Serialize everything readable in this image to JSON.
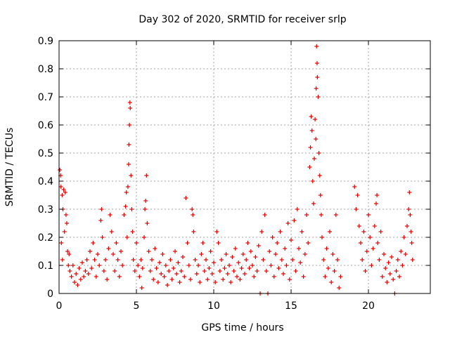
{
  "chart_data": {
    "type": "scatter",
    "title": "Day 302 of 2020, SRMTID for receiver srlp",
    "xlabel": "GPS time / hours",
    "ylabel": "SRMTID / TECUs",
    "xlim": [
      0,
      24
    ],
    "ylim": [
      0,
      0.9
    ],
    "xticks": [
      0,
      5,
      10,
      15,
      20
    ],
    "xtick_labels": [
      "0",
      "5",
      "10",
      "15",
      "20"
    ],
    "yticks": [
      0,
      0.1,
      0.2,
      0.3,
      0.4,
      0.5,
      0.6,
      0.7,
      0.8,
      0.9
    ],
    "ytick_labels": [
      "0",
      "0.1",
      "0.2",
      "0.3",
      "0.4",
      "0.5",
      "0.6",
      "0.7",
      "0.8",
      "0.9"
    ],
    "grid": true,
    "marker": "plus",
    "series": [
      {
        "name": "SRMTID",
        "color": "#e00000",
        "points": [
          [
            0.05,
            0.44
          ],
          [
            0.1,
            0.42
          ],
          [
            0.12,
            0.38
          ],
          [
            0.2,
            0.35
          ],
          [
            0.25,
            0.3
          ],
          [
            0.3,
            0.37
          ],
          [
            0.35,
            0.22
          ],
          [
            0.4,
            0.36
          ],
          [
            0.45,
            0.28
          ],
          [
            0.5,
            0.25
          ],
          [
            0.15,
            0.18
          ],
          [
            0.22,
            0.12
          ],
          [
            0.55,
            0.15
          ],
          [
            0.6,
            0.1
          ],
          [
            0.65,
            0.14
          ],
          [
            0.7,
            0.08
          ],
          [
            0.8,
            0.06
          ],
          [
            0.9,
            0.1
          ],
          [
            1.0,
            0.04
          ],
          [
            1.1,
            0.07
          ],
          [
            1.2,
            0.03
          ],
          [
            1.3,
            0.09
          ],
          [
            1.4,
            0.05
          ],
          [
            1.5,
            0.11
          ],
          [
            1.6,
            0.06
          ],
          [
            1.7,
            0.08
          ],
          [
            1.8,
            0.12
          ],
          [
            1.9,
            0.07
          ],
          [
            2.0,
            0.15
          ],
          [
            2.1,
            0.09
          ],
          [
            2.2,
            0.18
          ],
          [
            2.3,
            0.12
          ],
          [
            2.4,
            0.06
          ],
          [
            2.5,
            0.14
          ],
          [
            2.6,
            0.1
          ],
          [
            2.7,
            0.26
          ],
          [
            2.75,
            0.3
          ],
          [
            2.8,
            0.2
          ],
          [
            2.9,
            0.08
          ],
          [
            3.0,
            0.12
          ],
          [
            3.1,
            0.05
          ],
          [
            3.2,
            0.16
          ],
          [
            3.3,
            0.28
          ],
          [
            3.4,
            0.22
          ],
          [
            3.5,
            0.14
          ],
          [
            3.6,
            0.08
          ],
          [
            3.7,
            0.18
          ],
          [
            3.8,
            0.12
          ],
          [
            3.9,
            0.06
          ],
          [
            4.0,
            0.15
          ],
          [
            4.1,
            0.1
          ],
          [
            4.2,
            0.28
          ],
          [
            4.3,
            0.31
          ],
          [
            4.35,
            0.36
          ],
          [
            4.4,
            0.2
          ],
          [
            4.45,
            0.38
          ],
          [
            4.5,
            0.46
          ],
          [
            4.52,
            0.53
          ],
          [
            4.55,
            0.6
          ],
          [
            4.58,
            0.68
          ],
          [
            4.6,
            0.66
          ],
          [
            4.65,
            0.42
          ],
          [
            4.7,
            0.3
          ],
          [
            4.75,
            0.22
          ],
          [
            4.8,
            0.12
          ],
          [
            4.9,
            0.08
          ],
          [
            5.0,
            0.18
          ],
          [
            5.1,
            0.1
          ],
          [
            5.2,
            0.06
          ],
          [
            5.3,
            0.12
          ],
          [
            5.35,
            0.02
          ],
          [
            5.4,
            0.09
          ],
          [
            5.5,
            0.2
          ],
          [
            5.55,
            0.3
          ],
          [
            5.6,
            0.33
          ],
          [
            5.65,
            0.42
          ],
          [
            5.7,
            0.25
          ],
          [
            5.8,
            0.15
          ],
          [
            5.9,
            0.08
          ],
          [
            6.0,
            0.12
          ],
          [
            6.1,
            0.05
          ],
          [
            6.2,
            0.16
          ],
          [
            6.3,
            0.09
          ],
          [
            6.4,
            0.04
          ],
          [
            6.5,
            0.11
          ],
          [
            6.6,
            0.07
          ],
          [
            6.7,
            0.14
          ],
          [
            6.8,
            0.06
          ],
          [
            6.9,
            0.1
          ],
          [
            7.0,
            0.03
          ],
          [
            7.1,
            0.08
          ],
          [
            7.2,
            0.12
          ],
          [
            7.3,
            0.05
          ],
          [
            7.4,
            0.09
          ],
          [
            7.5,
            0.15
          ],
          [
            7.6,
            0.07
          ],
          [
            7.7,
            0.11
          ],
          [
            7.8,
            0.04
          ],
          [
            7.9,
            0.08
          ],
          [
            8.0,
            0.13
          ],
          [
            8.1,
            0.06
          ],
          [
            8.2,
            0.34
          ],
          [
            8.3,
            0.18
          ],
          [
            8.4,
            0.1
          ],
          [
            8.5,
            0.05
          ],
          [
            8.6,
            0.3
          ],
          [
            8.65,
            0.28
          ],
          [
            8.7,
            0.22
          ],
          [
            8.8,
            0.12
          ],
          [
            8.9,
            0.07
          ],
          [
            9.0,
            0.1
          ],
          [
            9.1,
            0.04
          ],
          [
            9.2,
            0.14
          ],
          [
            9.3,
            0.18
          ],
          [
            9.4,
            0.08
          ],
          [
            9.5,
            0.12
          ],
          [
            9.6,
            0.05
          ],
          [
            9.7,
            0.09
          ],
          [
            9.8,
            0.15
          ],
          [
            9.9,
            0.07
          ],
          [
            10.0,
            0.11
          ],
          [
            10.1,
            0.04
          ],
          [
            10.2,
            0.22
          ],
          [
            10.3,
            0.18
          ],
          [
            10.4,
            0.08
          ],
          [
            10.5,
            0.12
          ],
          [
            10.6,
            0.05
          ],
          [
            10.7,
            0.09
          ],
          [
            10.8,
            0.14
          ],
          [
            10.9,
            0.07
          ],
          [
            11.0,
            0.1
          ],
          [
            11.1,
            0.04
          ],
          [
            11.2,
            0.13
          ],
          [
            11.3,
            0.08
          ],
          [
            11.4,
            0.16
          ],
          [
            11.5,
            0.06
          ],
          [
            11.6,
            0.11
          ],
          [
            11.7,
            0.05
          ],
          [
            11.8,
            0.09
          ],
          [
            11.9,
            0.14
          ],
          [
            12.0,
            0.07
          ],
          [
            12.1,
            0.12
          ],
          [
            12.2,
            0.18
          ],
          [
            12.3,
            0.09
          ],
          [
            12.4,
            0.15
          ],
          [
            12.5,
            0.1
          ],
          [
            12.6,
            0.06
          ],
          [
            12.7,
            0.13
          ],
          [
            12.8,
            0.08
          ],
          [
            12.9,
            0.17
          ],
          [
            13.0,
            0.0
          ],
          [
            13.1,
            0.22
          ],
          [
            13.2,
            0.12
          ],
          [
            13.3,
            0.28
          ],
          [
            13.5,
            0.0
          ],
          [
            13.4,
            0.08
          ],
          [
            13.6,
            0.15
          ],
          [
            13.7,
            0.1
          ],
          [
            13.8,
            0.2
          ],
          [
            13.9,
            0.06
          ],
          [
            14.0,
            0.14
          ],
          [
            14.1,
            0.18
          ],
          [
            14.2,
            0.09
          ],
          [
            14.3,
            0.22
          ],
          [
            14.4,
            0.12
          ],
          [
            14.5,
            0.07
          ],
          [
            14.6,
            0.16
          ],
          [
            14.7,
            0.1
          ],
          [
            14.8,
            0.25
          ],
          [
            14.9,
            0.05
          ],
          [
            15.0,
            0.19
          ],
          [
            15.1,
            0.12
          ],
          [
            15.2,
            0.26
          ],
          [
            15.3,
            0.08
          ],
          [
            15.4,
            0.3
          ],
          [
            15.5,
            0.16
          ],
          [
            15.6,
            0.11
          ],
          [
            15.7,
            0.22
          ],
          [
            15.8,
            0.06
          ],
          [
            15.9,
            0.14
          ],
          [
            16.0,
            0.28
          ],
          [
            16.1,
            0.18
          ],
          [
            16.2,
            0.45
          ],
          [
            16.25,
            0.52
          ],
          [
            16.3,
            0.63
          ],
          [
            16.35,
            0.58
          ],
          [
            16.4,
            0.4
          ],
          [
            16.45,
            0.32
          ],
          [
            16.5,
            0.48
          ],
          [
            16.55,
            0.62
          ],
          [
            16.6,
            0.55
          ],
          [
            16.62,
            0.73
          ],
          [
            16.65,
            0.88
          ],
          [
            16.68,
            0.82
          ],
          [
            16.7,
            0.77
          ],
          [
            16.75,
            0.7
          ],
          [
            16.8,
            0.5
          ],
          [
            16.85,
            0.42
          ],
          [
            16.9,
            0.35
          ],
          [
            16.95,
            0.28
          ],
          [
            17.0,
            0.2
          ],
          [
            17.1,
            0.12
          ],
          [
            17.2,
            0.06
          ],
          [
            17.3,
            0.16
          ],
          [
            17.4,
            0.09
          ],
          [
            17.5,
            0.22
          ],
          [
            17.6,
            0.04
          ],
          [
            17.7,
            0.14
          ],
          [
            17.8,
            0.08
          ],
          [
            17.9,
            0.28
          ],
          [
            18.0,
            0.12
          ],
          [
            18.1,
            0.02
          ],
          [
            18.2,
            0.06
          ],
          [
            19.1,
            0.38
          ],
          [
            19.2,
            0.3
          ],
          [
            19.3,
            0.35
          ],
          [
            19.4,
            0.24
          ],
          [
            19.5,
            0.18
          ],
          [
            19.6,
            0.12
          ],
          [
            19.7,
            0.22
          ],
          [
            19.8,
            0.08
          ],
          [
            19.9,
            0.15
          ],
          [
            20.0,
            0.28
          ],
          [
            20.1,
            0.2
          ],
          [
            20.2,
            0.1
          ],
          [
            20.3,
            0.16
          ],
          [
            20.4,
            0.24
          ],
          [
            20.5,
            0.32
          ],
          [
            20.55,
            0.35
          ],
          [
            20.6,
            0.18
          ],
          [
            20.7,
            0.12
          ],
          [
            20.8,
            0.22
          ],
          [
            20.9,
            0.06
          ],
          [
            21.0,
            0.14
          ],
          [
            21.1,
            0.09
          ],
          [
            21.2,
            0.04
          ],
          [
            21.3,
            0.11
          ],
          [
            21.4,
            0.07
          ],
          [
            21.5,
            0.13
          ],
          [
            21.6,
            0.05
          ],
          [
            21.7,
            0.0
          ],
          [
            21.8,
            0.08
          ],
          [
            21.9,
            0.12
          ],
          [
            22.0,
            0.06
          ],
          [
            22.1,
            0.15
          ],
          [
            22.2,
            0.1
          ],
          [
            22.3,
            0.2
          ],
          [
            22.4,
            0.14
          ],
          [
            22.5,
            0.24
          ],
          [
            22.6,
            0.3
          ],
          [
            22.65,
            0.36
          ],
          [
            22.7,
            0.28
          ],
          [
            22.75,
            0.22
          ],
          [
            22.8,
            0.18
          ],
          [
            22.85,
            0.12
          ]
        ]
      }
    ]
  }
}
